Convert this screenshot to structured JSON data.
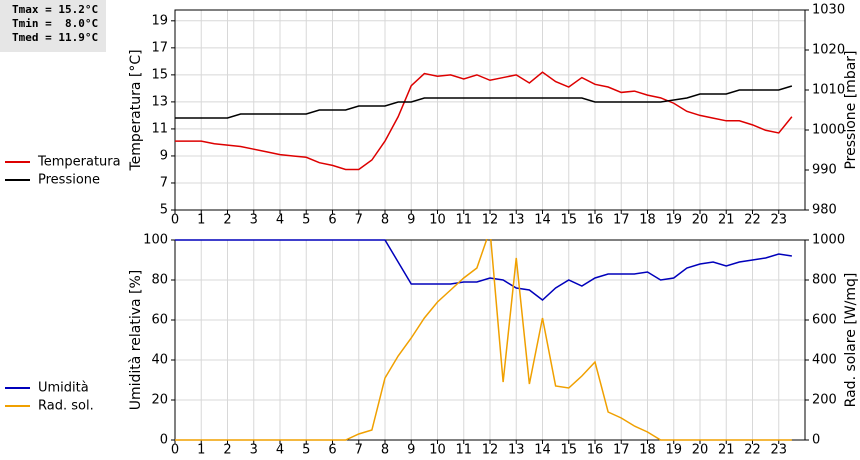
{
  "chart_data": [
    {
      "type": "line",
      "annotations": [
        "Tmax = 15.2°C",
        "Tmin =  8.0°C",
        "Tmed = 11.9°C"
      ],
      "y_label": "Temperatura [°C]",
      "y2_label": "Pressione [mbar]",
      "legend": "left",
      "grid": true,
      "x": [
        0,
        0.5,
        1,
        1.5,
        2,
        2.5,
        3,
        3.5,
        4,
        4.5,
        5,
        5.5,
        6,
        6.5,
        7,
        7.5,
        8,
        8.5,
        9,
        9.5,
        10,
        10.5,
        11,
        11.5,
        12,
        12.5,
        13,
        13.5,
        14,
        14.5,
        15,
        15.5,
        16,
        16.5,
        17,
        17.5,
        18,
        18.5,
        19,
        19.5,
        20,
        20.5,
        21,
        21.5,
        22,
        22.5,
        23,
        23.5
      ],
      "xlim": [
        0,
        24
      ],
      "xticks": [
        0,
        1,
        2,
        3,
        4,
        5,
        6,
        7,
        8,
        9,
        10,
        11,
        12,
        13,
        14,
        15,
        16,
        17,
        18,
        19,
        20,
        21,
        22,
        23
      ],
      "ylim": [
        5,
        19.8
      ],
      "yticks": [
        5,
        7,
        9,
        11,
        13,
        15,
        17,
        19
      ],
      "y2lim": [
        980,
        1030
      ],
      "y2ticks": [
        980,
        990,
        1000,
        1010,
        1020,
        1030
      ],
      "series": [
        {
          "name": "Temperatura",
          "color": "#dd0000",
          "values": [
            10.1,
            10.1,
            10.1,
            9.9,
            9.8,
            9.7,
            9.5,
            9.3,
            9.1,
            9.0,
            8.9,
            8.5,
            8.3,
            8.0,
            8.0,
            8.7,
            10.1,
            11.9,
            14.2,
            15.1,
            14.9,
            15.0,
            14.7,
            15.0,
            14.6,
            14.8,
            15.0,
            14.4,
            15.2,
            14.5,
            14.1,
            14.8,
            14.3,
            14.1,
            13.7,
            13.8,
            13.5,
            13.3,
            12.9,
            12.3,
            12.0,
            11.8,
            11.6,
            11.6,
            11.3,
            10.9,
            10.7,
            11.9
          ]
        },
        {
          "name": "Pressione",
          "color": "#000000",
          "axis": "y2",
          "values": [
            1003,
            1003,
            1003,
            1003,
            1003,
            1004,
            1004,
            1004,
            1004,
            1004,
            1004,
            1005,
            1005,
            1005,
            1006,
            1006,
            1006,
            1007,
            1007,
            1008,
            1008,
            1008,
            1008,
            1008,
            1008,
            1008,
            1008,
            1008,
            1008,
            1008,
            1008,
            1008,
            1007,
            1007,
            1007,
            1007,
            1007,
            1007,
            1007.5,
            1008,
            1009,
            1009,
            1009,
            1010,
            1010,
            1010,
            1010,
            1011
          ]
        }
      ]
    },
    {
      "type": "line",
      "y_label": "Umidità relativa [%]",
      "y2_label": "Rad. solare [W/mq]",
      "legend": "left",
      "grid": true,
      "x": [
        0,
        0.5,
        1,
        1.5,
        2,
        2.5,
        3,
        3.5,
        4,
        4.5,
        5,
        5.5,
        6,
        6.5,
        7,
        7.5,
        8,
        8.5,
        9,
        9.5,
        10,
        10.5,
        11,
        11.5,
        12,
        12.5,
        13,
        13.5,
        14,
        14.5,
        15,
        15.5,
        16,
        16.5,
        17,
        17.5,
        18,
        18.5,
        19,
        19.5,
        20,
        20.5,
        21,
        21.5,
        22,
        22.5,
        23,
        23.5
      ],
      "xlim": [
        0,
        24
      ],
      "xticks": [
        0,
        1,
        2,
        3,
        4,
        5,
        6,
        7,
        8,
        9,
        10,
        11,
        12,
        13,
        14,
        15,
        16,
        17,
        18,
        19,
        20,
        21,
        22,
        23
      ],
      "ylim": [
        0,
        100
      ],
      "yticks": [
        0,
        20,
        40,
        60,
        80,
        100
      ],
      "y2lim": [
        0,
        1000
      ],
      "y2ticks": [
        0,
        200,
        400,
        600,
        800,
        1000
      ],
      "series": [
        {
          "name": "Umidità",
          "color": "#0000bb",
          "values": [
            100,
            100,
            100,
            100,
            100,
            100,
            100,
            100,
            100,
            100,
            100,
            100,
            100,
            100,
            100,
            100,
            100,
            89,
            78,
            78,
            78,
            78,
            79,
            79,
            81,
            80,
            76,
            75,
            70,
            76,
            80,
            77,
            81,
            83,
            83,
            83,
            84,
            80,
            81,
            86,
            88,
            89,
            87,
            89,
            90,
            91,
            93,
            92
          ]
        },
        {
          "name": "Rad. sol.",
          "color": "#f0a000",
          "axis": "y2",
          "values": [
            0,
            0,
            0,
            0,
            0,
            0,
            0,
            0,
            0,
            0,
            0,
            0,
            0,
            0,
            30,
            50,
            310,
            420,
            510,
            610,
            690,
            750,
            810,
            860,
            1050,
            290,
            910,
            280,
            610,
            270,
            260,
            320,
            390,
            140,
            110,
            70,
            40,
            0,
            0,
            0,
            0,
            0,
            0,
            0,
            0,
            0,
            0,
            0
          ]
        }
      ]
    }
  ]
}
